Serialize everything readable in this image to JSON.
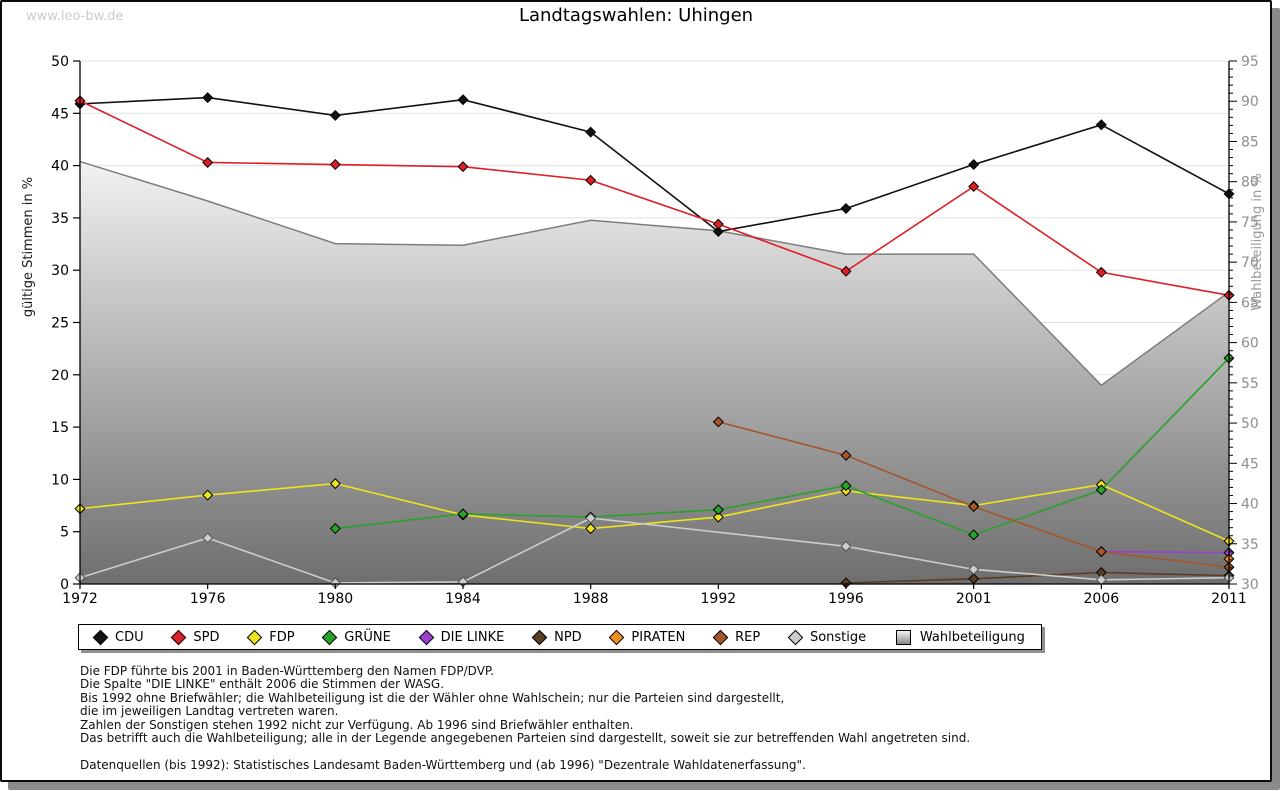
{
  "page": {
    "watermark": "www.leo-bw.de",
    "title": "Landtagswahlen: Uhingen"
  },
  "chart_data": {
    "type": "line",
    "title": "Landtagswahlen: Uhingen",
    "categories": [
      1972,
      1976,
      1980,
      1984,
      1988,
      1992,
      1996,
      2001,
      2006,
      2011
    ],
    "left_axis": {
      "label": "gültige Stimmen in %",
      "min": 0,
      "max": 50,
      "tick_step": 5
    },
    "right_axis": {
      "label": "Wahlbeteiligung in %",
      "min": 30,
      "max": 95,
      "tick_step": 5,
      "minor_tick_step": 1
    },
    "grid": {
      "horizontal": true,
      "at_left_axis_step": 5,
      "color": "#e2e2e2"
    },
    "legend_position": "bottom",
    "series": [
      {
        "name": "CDU",
        "axis": "left",
        "kind": "line",
        "color": "#111111",
        "values": [
          45.9,
          46.5,
          44.8,
          46.3,
          43.2,
          33.7,
          35.9,
          40.1,
          43.9,
          37.3
        ]
      },
      {
        "name": "SPD",
        "axis": "left",
        "kind": "line",
        "color": "#dd1f26",
        "values": [
          46.2,
          40.3,
          40.1,
          39.9,
          38.6,
          34.4,
          29.9,
          38.0,
          29.8,
          27.6
        ]
      },
      {
        "name": "FDP",
        "axis": "left",
        "kind": "line",
        "color": "#efe41b",
        "values": [
          7.2,
          8.5,
          9.6,
          6.6,
          5.3,
          6.4,
          8.9,
          7.5,
          9.5,
          4.1
        ]
      },
      {
        "name": "GRÜNE",
        "axis": "left",
        "kind": "line",
        "color": "#29a229",
        "values": [
          null,
          null,
          5.3,
          6.7,
          6.4,
          7.1,
          9.4,
          4.7,
          9.0,
          21.6
        ]
      },
      {
        "name": "DIE LINKE",
        "axis": "left",
        "kind": "line",
        "color": "#9b3fd1",
        "values": [
          null,
          null,
          null,
          null,
          null,
          null,
          null,
          null,
          3.1,
          3.0
        ]
      },
      {
        "name": "NPD",
        "axis": "left",
        "kind": "line",
        "color": "#5a3d23",
        "values": [
          null,
          null,
          null,
          null,
          null,
          null,
          0.1,
          0.5,
          1.1,
          0.8
        ]
      },
      {
        "name": "PIRATEN",
        "axis": "left",
        "kind": "line",
        "color": "#ee8f20",
        "values": [
          null,
          null,
          null,
          null,
          null,
          null,
          null,
          null,
          null,
          2.4
        ]
      },
      {
        "name": "REP",
        "axis": "left",
        "kind": "line",
        "color": "#a5552b",
        "values": [
          null,
          null,
          null,
          null,
          null,
          15.5,
          12.3,
          7.4,
          3.1,
          1.6
        ]
      },
      {
        "name": "Sonstige",
        "axis": "left",
        "kind": "line",
        "color": "#cdcdcd",
        "values": [
          0.6,
          4.4,
          0.1,
          0.2,
          6.3,
          null,
          3.6,
          1.4,
          0.4,
          0.6
        ]
      },
      {
        "name": "Wahlbeteiligung",
        "axis": "right",
        "kind": "area",
        "color": "#7d7d7d",
        "values": [
          82.5,
          77.6,
          72.3,
          72.1,
          75.2,
          73.9,
          71.0,
          71.0,
          54.7,
          66.3
        ]
      }
    ]
  },
  "footnotes": [
    "Die FDP führte bis 2001 in Baden-Württemberg den Namen FDP/DVP.",
    "Die Spalte \"DIE LINKE\" enthält 2006 die Stimmen der WASG.",
    "Bis 1992 ohne Briefwähler; die Wahlbeteiligung ist die der Wähler ohne Wahlschein; nur die Parteien sind dargestellt,",
    "die im jeweiligen Landtag vertreten waren.",
    "Zahlen der Sonstigen stehen 1992 nicht zur Verfügung. Ab 1996 sind Briefwähler enthalten.",
    "Das betrifft auch die Wahlbeteiligung; alle in der Legende angegebenen Parteien sind dargestellt, soweit sie zur betreffenden Wahl angetreten sind.",
    "",
    "Datenquellen (bis 1992): Statistisches Landesamt Baden-Württemberg und (ab 1996) \"Dezentrale Wahldatenerfassung\"."
  ]
}
